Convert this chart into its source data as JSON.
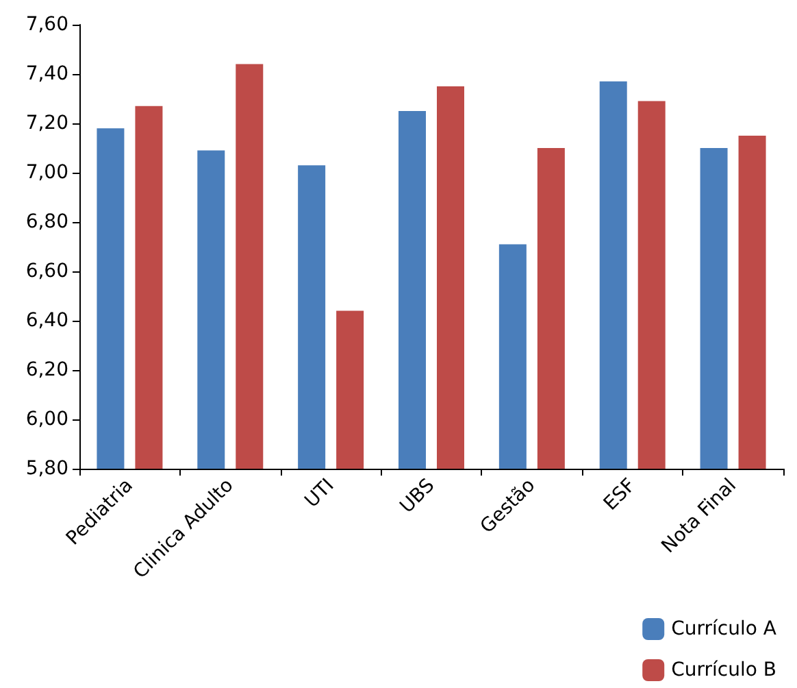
{
  "chart_data": {
    "type": "bar",
    "categories": [
      "Pediatria",
      "Clinica Adulto",
      "UTI",
      "UBS",
      "Gestão",
      "ESF",
      "Nota Final"
    ],
    "series": [
      {
        "name": "Currículo A",
        "color": "#4a7ebb",
        "values": [
          7.18,
          7.09,
          7.03,
          7.25,
          6.71,
          7.37,
          7.1
        ]
      },
      {
        "name": "Currículo B",
        "color": "#be4b48",
        "values": [
          7.27,
          7.44,
          6.44,
          7.35,
          7.1,
          7.29,
          7.15
        ]
      }
    ],
    "ylim": [
      5.8,
      7.6
    ],
    "yticks": [
      {
        "value": 5.8,
        "label": "5,80"
      },
      {
        "value": 6.0,
        "label": "6,00"
      },
      {
        "value": 6.2,
        "label": "6,20"
      },
      {
        "value": 6.4,
        "label": "6,40"
      },
      {
        "value": 6.6,
        "label": "6,60"
      },
      {
        "value": 6.8,
        "label": "6,80"
      },
      {
        "value": 7.0,
        "label": "7,00"
      },
      {
        "value": 7.2,
        "label": "7,20"
      },
      {
        "value": 7.4,
        "label": "7,40"
      },
      {
        "value": 7.6,
        "label": "7,60"
      }
    ],
    "grid": false,
    "legend": "bottom right"
  }
}
